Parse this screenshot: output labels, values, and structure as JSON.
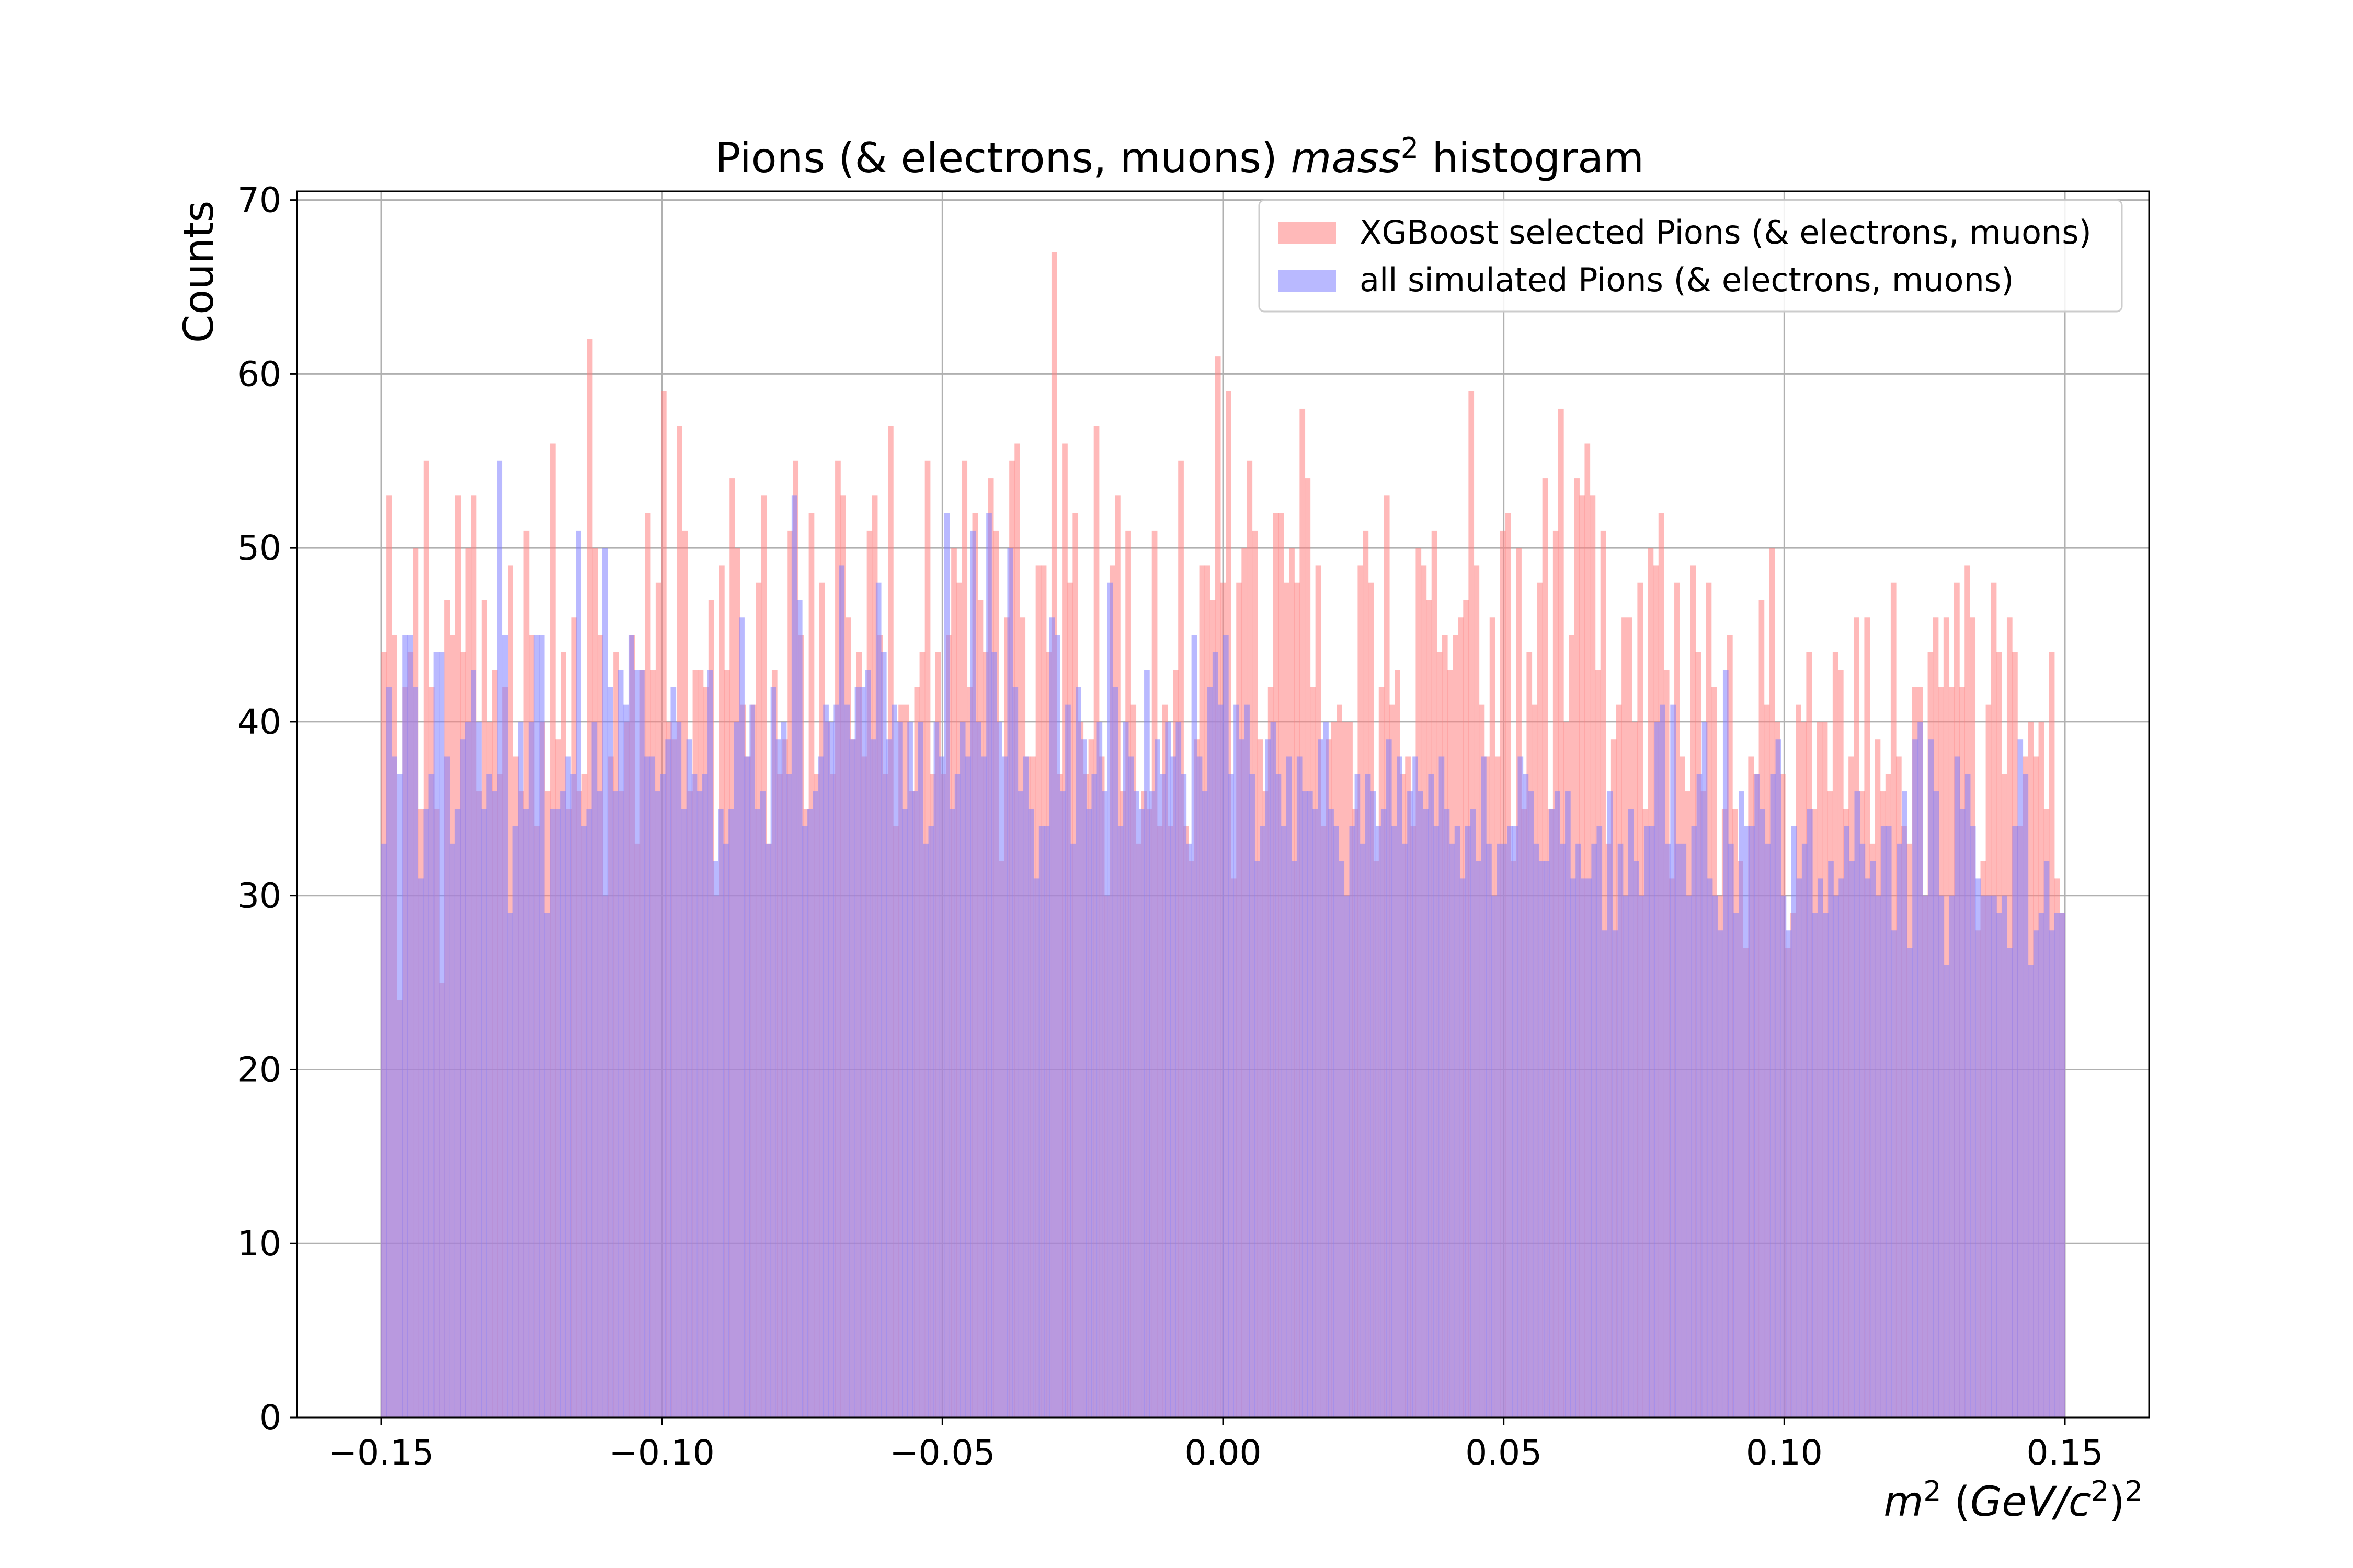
{
  "chart_data": {
    "type": "bar",
    "title_prefix": "Pions (& electrons, muons) ",
    "title_math": "mass",
    "title_sup": "2",
    "title_suffix": " histogram",
    "ylabel": "Counts",
    "xlabel_parts": [
      "m",
      "2",
      " (",
      "GeV/c",
      "2",
      ")",
      "2"
    ],
    "xlim": [
      -0.165,
      0.165
    ],
    "ylim": [
      0,
      70.5
    ],
    "bin_range": [
      -0.15,
      0.15
    ],
    "x_ticks": [
      -0.15,
      -0.1,
      -0.05,
      0.0,
      0.05,
      0.1,
      0.15
    ],
    "x_tick_labels": [
      "−0.15",
      "−0.10",
      "−0.05",
      "0.00",
      "0.05",
      "0.10",
      "0.15"
    ],
    "y_ticks": [
      0,
      10,
      20,
      30,
      40,
      50,
      60,
      70
    ],
    "y_tick_labels": [
      "0",
      "10",
      "20",
      "30",
      "40",
      "50",
      "60",
      "70"
    ],
    "grid": true,
    "legend_position": "top-right",
    "series": [
      {
        "name": "XGBoost selected Pions (& electrons, muons)",
        "color": "#ff7f7f",
        "opacity": 0.55,
        "values": [
          44,
          53,
          45,
          24,
          42,
          44,
          50,
          35,
          55,
          42,
          35,
          25,
          47,
          45,
          53,
          44,
          50,
          53,
          36,
          47,
          40,
          43,
          37,
          42,
          49,
          38,
          36,
          51,
          45,
          34,
          40,
          36,
          56,
          39,
          44,
          35,
          46,
          36,
          37,
          62,
          50,
          45,
          30,
          38,
          44,
          36,
          40,
          45,
          33,
          43,
          52,
          43,
          48,
          59,
          40,
          39,
          57,
          51,
          36,
          43,
          43,
          42,
          47,
          30,
          49,
          43,
          54,
          50,
          41,
          38,
          41,
          48,
          53,
          33,
          43,
          37,
          39,
          51,
          55,
          45,
          35,
          52,
          37,
          48,
          40,
          37,
          55,
          53,
          46,
          39,
          44,
          38,
          51,
          53,
          45,
          37,
          57,
          34,
          41,
          41,
          36,
          42,
          44,
          55,
          37,
          44,
          37,
          45,
          50,
          48,
          55,
          42,
          52,
          47,
          44,
          54,
          51,
          32,
          46,
          55,
          56,
          46,
          38,
          38,
          49,
          49,
          44,
          67,
          37,
          56,
          48,
          52,
          40,
          37,
          39,
          57,
          38,
          30,
          49,
          53,
          36,
          51,
          41,
          33,
          36,
          35,
          51,
          34,
          41,
          34,
          43,
          55,
          34,
          32,
          39,
          49,
          49,
          47,
          61,
          48,
          59,
          31,
          48,
          50,
          55,
          51,
          39,
          36,
          42,
          52,
          52,
          48,
          50,
          48,
          58,
          54,
          42,
          49,
          34,
          39,
          40,
          41,
          40,
          40,
          35,
          49,
          51,
          48,
          32,
          42,
          53,
          41,
          43,
          37,
          38,
          34,
          50,
          49,
          47,
          51,
          44,
          45,
          43,
          45,
          46,
          47,
          59,
          49,
          41,
          38,
          46,
          38,
          51,
          52,
          32,
          50,
          35,
          44,
          41,
          48,
          54,
          35,
          51,
          58,
          40,
          45,
          54,
          53,
          56,
          53,
          43,
          51,
          33,
          39,
          41,
          46,
          46,
          40,
          48,
          35,
          50,
          49,
          52,
          43,
          31,
          48,
          38,
          36,
          49,
          44,
          36,
          48,
          42,
          30,
          35,
          45,
          35,
          32,
          27,
          38,
          37,
          47,
          41,
          50,
          40,
          37,
          27,
          29,
          41,
          40,
          44,
          35,
          40,
          40,
          36,
          44,
          43,
          35,
          38,
          46,
          36,
          46,
          33,
          39,
          36,
          37,
          48,
          38,
          34,
          33,
          42,
          42,
          30,
          44,
          46,
          42,
          46,
          42,
          48,
          42,
          49,
          46,
          28,
          32,
          41,
          48,
          44,
          37,
          46,
          44,
          34,
          38,
          40,
          38,
          40,
          35,
          44,
          31,
          29
        ]
      },
      {
        "name": "all simulated Pions (& electrons, muons)",
        "color": "#7f7fff",
        "opacity": 0.55,
        "values": [
          33,
          42,
          38,
          37,
          45,
          45,
          42,
          31,
          35,
          37,
          44,
          44,
          38,
          33,
          35,
          39,
          40,
          43,
          40,
          35,
          37,
          36,
          55,
          45,
          29,
          34,
          40,
          35,
          40,
          45,
          45,
          29,
          35,
          35,
          36,
          38,
          37,
          51,
          34,
          35,
          40,
          36,
          50,
          42,
          36,
          43,
          41,
          45,
          43,
          43,
          38,
          38,
          36,
          37,
          39,
          42,
          40,
          35,
          39,
          37,
          36,
          37,
          43,
          32,
          35,
          33,
          35,
          40,
          46,
          38,
          41,
          35,
          36,
          33,
          42,
          39,
          40,
          37,
          53,
          47,
          34,
          35,
          36,
          38,
          41,
          40,
          41,
          49,
          41,
          39,
          42,
          42,
          43,
          39,
          48,
          44,
          39,
          41,
          40,
          35,
          40,
          36,
          40,
          33,
          34,
          40,
          38,
          52,
          35,
          37,
          40,
          38,
          51,
          40,
          38,
          52,
          44,
          40,
          38,
          50,
          42,
          36,
          38,
          35,
          31,
          34,
          34,
          46,
          45,
          36,
          41,
          33,
          42,
          39,
          35,
          37,
          40,
          36,
          48,
          42,
          34,
          40,
          38,
          36,
          35,
          43,
          36,
          39,
          37,
          40,
          38,
          40,
          37,
          33,
          45,
          38,
          36,
          42,
          44,
          41,
          45,
          37,
          41,
          39,
          41,
          37,
          32,
          34,
          39,
          40,
          37,
          34,
          38,
          32,
          38,
          36,
          36,
          35,
          39,
          40,
          35,
          34,
          32,
          30,
          34,
          37,
          33,
          37,
          36,
          34,
          35,
          39,
          34,
          38,
          33,
          36,
          38,
          36,
          35,
          37,
          34,
          38,
          35,
          33,
          34,
          31,
          34,
          35,
          32,
          38,
          33,
          30,
          33,
          33,
          34,
          34,
          38,
          37,
          36,
          33,
          32,
          32,
          35,
          36,
          33,
          36,
          31,
          33,
          31,
          31,
          33,
          34,
          28,
          36,
          28,
          33,
          30,
          35,
          32,
          30,
          34,
          34,
          40,
          41,
          33,
          41,
          33,
          33,
          30,
          34,
          37,
          40,
          31,
          30,
          28,
          43,
          33,
          29,
          36,
          34,
          34,
          37,
          35,
          33,
          37,
          39,
          30,
          28,
          34,
          31,
          33,
          35,
          29,
          31,
          29,
          32,
          30,
          31,
          34,
          32,
          36,
          33,
          31,
          32,
          30,
          34,
          34,
          28,
          33,
          36,
          27,
          39,
          40,
          30,
          39,
          36,
          30,
          26,
          30,
          38,
          35,
          37,
          34,
          31,
          30,
          30,
          30,
          29,
          30,
          27,
          34,
          39,
          37,
          26,
          28,
          29,
          32,
          28,
          29,
          29
        ]
      }
    ]
  }
}
